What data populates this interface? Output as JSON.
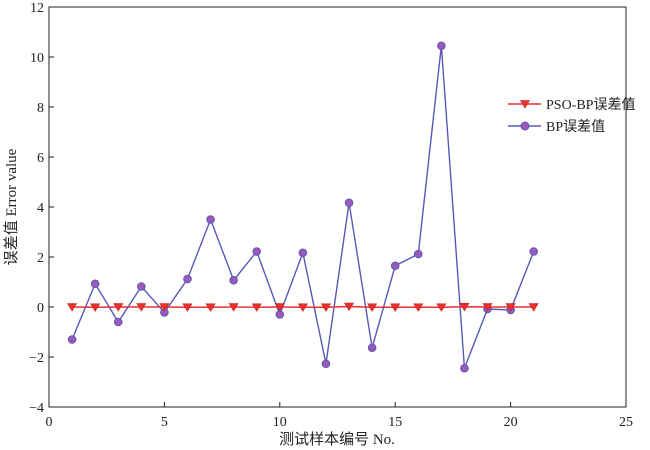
{
  "chart_data": {
    "type": "line",
    "xlabel": "测试样本编号 No.",
    "ylabel": "误差值 Error value",
    "xlim": [
      0,
      25
    ],
    "ylim": [
      -4,
      12
    ],
    "xticks": [
      0,
      5,
      10,
      15,
      20,
      25
    ],
    "yticks": [
      -4,
      -2,
      0,
      2,
      4,
      6,
      8,
      10,
      12
    ],
    "grid": false,
    "legend_position": "right",
    "x": [
      1,
      2,
      3,
      4,
      5,
      6,
      7,
      8,
      9,
      10,
      11,
      12,
      13,
      14,
      15,
      16,
      17,
      18,
      19,
      20,
      21
    ],
    "series": [
      {
        "name": "PSO-BP误差值",
        "color": "#e8312f",
        "marker": "triangle-down",
        "values": [
          0.0,
          -0.01,
          0.0,
          0.0,
          0.0,
          -0.01,
          -0.01,
          0.0,
          -0.01,
          0.0,
          -0.01,
          -0.01,
          0.02,
          -0.01,
          -0.01,
          -0.01,
          -0.01,
          0.01,
          0.0,
          0.0,
          0.0
        ]
      },
      {
        "name": "BP误差值",
        "color": "#5858b8",
        "marker": "circle",
        "values": [
          -1.3,
          0.93,
          -0.6,
          0.82,
          -0.22,
          1.12,
          3.5,
          1.07,
          2.22,
          -0.3,
          2.17,
          -2.27,
          4.17,
          -1.63,
          1.65,
          2.12,
          10.45,
          -2.45,
          -0.08,
          -0.12,
          2.22
        ]
      }
    ]
  }
}
